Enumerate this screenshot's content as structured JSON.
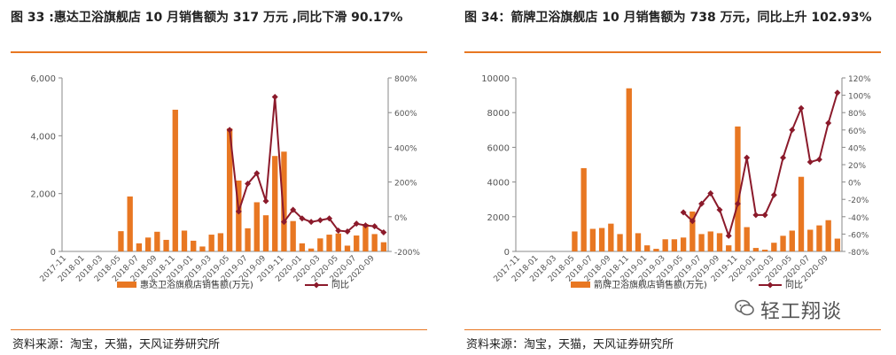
{
  "panels": {
    "left": {
      "title": "图 33 :惠达卫浴旗舰店 10 月销售额为 317 万元 ,同比下滑 90.17%",
      "source": "资料来源：淘宝，天猫，天风证券研究所"
    },
    "right": {
      "title": "图 34：箭牌卫浴旗舰店 10 月销售额为 738 万元，同比上升 102.93%",
      "source": "资料来源：淘宝，天猫，天风证券研究所"
    }
  },
  "watermark": {
    "text": "轻工翔谈"
  },
  "colors": {
    "bar": "#e87722",
    "line": "#8b1a2b",
    "accent": "#e87722"
  },
  "chart_data": [
    {
      "type": "bar+line",
      "id": "left",
      "categories": [
        "2017-11",
        "2017-12",
        "2018-01",
        "2018-02",
        "2018-03",
        "2018-04",
        "2018-05",
        "2018-06",
        "2018-07",
        "2018-08",
        "2018-09",
        "2018-10",
        "2018-11",
        "2018-12",
        "2019-01",
        "2019-02",
        "2019-03",
        "2019-04",
        "2019-05",
        "2019-06",
        "2019-07",
        "2019-08",
        "2019-09",
        "2019-10",
        "2019-11",
        "2019-12",
        "2020-01",
        "2020-02",
        "2020-03",
        "2020-04",
        "2020-05",
        "2020-06",
        "2020-07",
        "2020-08",
        "2020-09",
        "2020-10"
      ],
      "tick_labels": [
        "2017-11",
        "2018-01",
        "2018-03",
        "2018-05",
        "2018-07",
        "2018-09",
        "2018-11",
        "2019-01",
        "2019-03",
        "2019-05",
        "2019-07",
        "2019-09",
        "2019-11",
        "2020-01",
        "2020-03",
        "2020-05",
        "2020-07",
        "2020-09"
      ],
      "series": [
        {
          "name": "惠达卫浴旗舰店销售额(万元)",
          "type": "bar",
          "axis": "left",
          "values": [
            0,
            0,
            0,
            0,
            0,
            0,
            700,
            1900,
            280,
            480,
            680,
            400,
            4900,
            720,
            370,
            170,
            580,
            630,
            4250,
            2450,
            800,
            1700,
            1250,
            3300,
            3450,
            1050,
            280,
            100,
            450,
            580,
            620,
            200,
            550,
            950,
            600,
            317
          ]
        },
        {
          "name": "同比",
          "type": "line",
          "axis": "right",
          "values": [
            null,
            null,
            null,
            null,
            null,
            null,
            null,
            null,
            null,
            null,
            null,
            null,
            null,
            null,
            null,
            null,
            null,
            null,
            500,
            30,
            190,
            250,
            90,
            690,
            -30,
            40,
            -10,
            -30,
            -20,
            -10,
            -80,
            -85,
            -40,
            -50,
            -55,
            -90.17
          ]
        }
      ],
      "y_left": {
        "min": 0,
        "max": 6000,
        "ticks": [
          0,
          2000,
          4000,
          6000
        ],
        "tick_labels": [
          "0",
          "2,000",
          "4,000",
          "6,000"
        ]
      },
      "y_right": {
        "min": -200,
        "max": 800,
        "ticks": [
          -200,
          0,
          200,
          400,
          600,
          800
        ],
        "tick_labels": [
          "-200%",
          "0%",
          "200%",
          "400%",
          "600%",
          "800%"
        ]
      },
      "legend": {
        "bar": "惠达卫浴旗舰店销售额(万元)",
        "line": "同比",
        "position": "bottom"
      }
    },
    {
      "type": "bar+line",
      "id": "right",
      "categories": [
        "2017-11",
        "2017-12",
        "2018-01",
        "2018-02",
        "2018-03",
        "2018-04",
        "2018-05",
        "2018-06",
        "2018-07",
        "2018-08",
        "2018-09",
        "2018-10",
        "2018-11",
        "2018-12",
        "2019-01",
        "2019-02",
        "2019-03",
        "2019-04",
        "2019-05",
        "2019-06",
        "2019-07",
        "2019-08",
        "2019-09",
        "2019-10",
        "2019-11",
        "2019-12",
        "2020-01",
        "2020-02",
        "2020-03",
        "2020-04",
        "2020-05",
        "2020-06",
        "2020-07",
        "2020-08",
        "2020-09",
        "2020-10"
      ],
      "tick_labels": [
        "2017-11",
        "2018-01",
        "2018-03",
        "2018-05",
        "2018-07",
        "2018-09",
        "2018-11",
        "2019-01",
        "2019-03",
        "2019-05",
        "2019-07",
        "2019-09",
        "2019-11",
        "2020-01",
        "2020-03",
        "2020-05",
        "2020-07",
        "2020-09"
      ],
      "series": [
        {
          "name": "箭牌卫浴旗舰店销售额(万元)",
          "type": "bar",
          "axis": "left",
          "values": [
            0,
            0,
            0,
            0,
            0,
            0,
            1150,
            4800,
            1300,
            1350,
            1600,
            1000,
            9400,
            1050,
            350,
            150,
            700,
            700,
            800,
            2300,
            1000,
            1150,
            1050,
            350,
            7200,
            1400,
            200,
            100,
            500,
            900,
            1200,
            4300,
            1250,
            1500,
            1800,
            738
          ]
        },
        {
          "name": "同比",
          "type": "line",
          "axis": "right",
          "values": [
            null,
            null,
            null,
            null,
            null,
            null,
            null,
            null,
            null,
            null,
            null,
            null,
            null,
            null,
            null,
            null,
            null,
            null,
            -35,
            -45,
            -25,
            -13,
            -32,
            -62,
            -25,
            28,
            -38,
            -38,
            -15,
            28,
            60,
            85,
            23,
            26,
            68,
            102.93
          ]
        }
      ],
      "y_left": {
        "min": 0,
        "max": 10000,
        "ticks": [
          0,
          2000,
          4000,
          6000,
          8000,
          10000
        ],
        "tick_labels": [
          "0",
          "2000",
          "4000",
          "6000",
          "8000",
          "10000"
        ]
      },
      "y_right": {
        "min": -80,
        "max": 120,
        "ticks": [
          -80,
          -60,
          -40,
          -20,
          0,
          20,
          40,
          60,
          80,
          100,
          120
        ],
        "tick_labels": [
          "-80%",
          "-60%",
          "-40%",
          "-20%",
          "0%",
          "20%",
          "40%",
          "60%",
          "80%",
          "100%",
          "120%"
        ]
      },
      "legend": {
        "bar": "箭牌卫浴旗舰店销售额(万元)",
        "line": "同比",
        "position": "bottom"
      }
    }
  ]
}
